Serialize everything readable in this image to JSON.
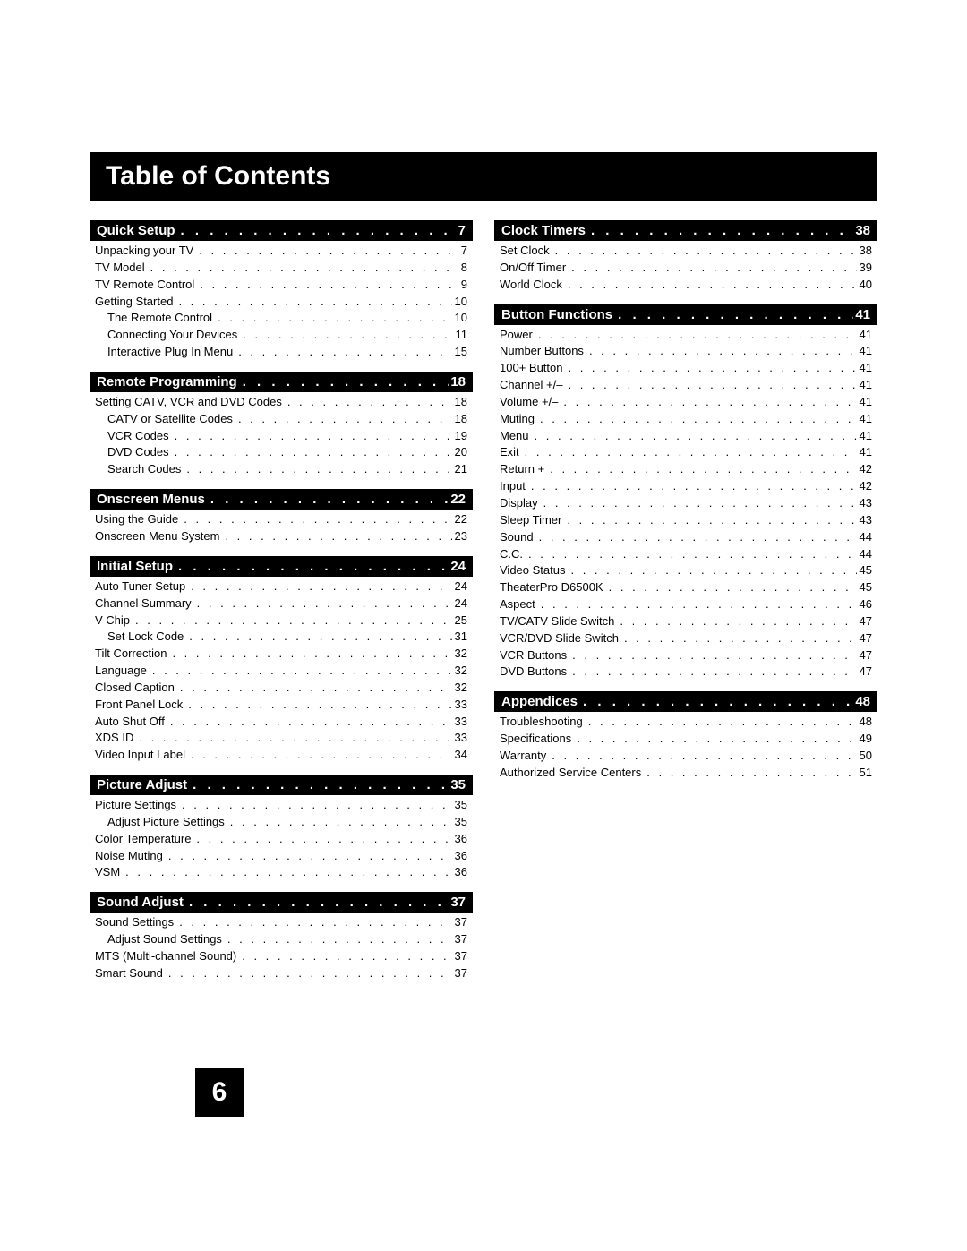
{
  "title": "Table of Contents",
  "page_number": "6",
  "colors": {
    "bg": "#ffffff",
    "header_bg": "#000000",
    "header_fg": "#ffffff",
    "text": "#000000"
  },
  "columns": [
    {
      "sections": [
        {
          "title": "Quick Setup",
          "page": "7",
          "entries": [
            {
              "label": "Unpacking your TV",
              "page": "7",
              "indent": 0
            },
            {
              "label": "TV Model",
              "page": "8",
              "indent": 0
            },
            {
              "label": "TV Remote Control",
              "page": "9",
              "indent": 0
            },
            {
              "label": "Getting Started",
              "page": "10",
              "indent": 0
            },
            {
              "label": "The Remote Control",
              "page": "10",
              "indent": 1
            },
            {
              "label": "Connecting Your Devices",
              "page": "11",
              "indent": 1
            },
            {
              "label": "Interactive Plug In Menu",
              "page": "15",
              "indent": 1
            }
          ]
        },
        {
          "title": "Remote Programming",
          "page": "18",
          "entries": [
            {
              "label": "Setting CATV, VCR and DVD Codes",
              "page": "18",
              "indent": 0
            },
            {
              "label": "CATV or Satellite Codes",
              "page": "18",
              "indent": 1
            },
            {
              "label": "VCR Codes",
              "page": "19",
              "indent": 1
            },
            {
              "label": "DVD Codes",
              "page": "20",
              "indent": 1
            },
            {
              "label": "Search Codes",
              "page": "21",
              "indent": 1
            }
          ]
        },
        {
          "title": "Onscreen Menus",
          "page": "22",
          "entries": [
            {
              "label": "Using the Guide",
              "page": "22",
              "indent": 0
            },
            {
              "label": "Onscreen Menu System",
              "page": "23",
              "indent": 0
            }
          ]
        },
        {
          "title": "Initial Setup",
          "page": "24",
          "entries": [
            {
              "label": "Auto Tuner Setup",
              "page": "24",
              "indent": 0
            },
            {
              "label": "Channel Summary",
              "page": "24",
              "indent": 0
            },
            {
              "label": "V-Chip",
              "page": "25",
              "indent": 0
            },
            {
              "label": "Set Lock Code",
              "page": "31",
              "indent": 1
            },
            {
              "label": "Tilt Correction",
              "page": "32",
              "indent": 0
            },
            {
              "label": "Language",
              "page": "32",
              "indent": 0
            },
            {
              "label": "Closed Caption",
              "page": "32",
              "indent": 0
            },
            {
              "label": "Front Panel Lock",
              "page": "33",
              "indent": 0
            },
            {
              "label": "Auto Shut Off",
              "page": "33",
              "indent": 0
            },
            {
              "label": "XDS ID",
              "page": "33",
              "indent": 0
            },
            {
              "label": "Video Input Label",
              "page": "34",
              "indent": 0
            }
          ]
        },
        {
          "title": "Picture Adjust",
          "page": "35",
          "entries": [
            {
              "label": "Picture Settings",
              "page": "35",
              "indent": 0
            },
            {
              "label": "Adjust Picture Settings",
              "page": "35",
              "indent": 1
            },
            {
              "label": "Color Temperature",
              "page": "36",
              "indent": 0
            },
            {
              "label": "Noise Muting",
              "page": "36",
              "indent": 0
            },
            {
              "label": "VSM",
              "page": "36",
              "indent": 0
            }
          ]
        },
        {
          "title": "Sound Adjust",
          "page": "37",
          "entries": [
            {
              "label": "Sound Settings",
              "page": "37",
              "indent": 0
            },
            {
              "label": "Adjust Sound Settings",
              "page": "37",
              "indent": 1
            },
            {
              "label": "MTS (Multi-channel Sound)",
              "page": "37",
              "indent": 0
            },
            {
              "label": "Smart Sound",
              "page": "37",
              "indent": 0
            }
          ]
        }
      ]
    },
    {
      "sections": [
        {
          "title": "Clock Timers",
          "page": "38",
          "entries": [
            {
              "label": "Set Clock",
              "page": "38",
              "indent": 0
            },
            {
              "label": "On/Off Timer",
              "page": "39",
              "indent": 0
            },
            {
              "label": "World Clock",
              "page": "40",
              "indent": 0
            }
          ]
        },
        {
          "title": "Button Functions",
          "page": "41",
          "entries": [
            {
              "label": "Power",
              "page": "41",
              "indent": 0
            },
            {
              "label": "Number Buttons",
              "page": "41",
              "indent": 0
            },
            {
              "label": "100+ Button",
              "page": "41",
              "indent": 0
            },
            {
              "label": "Channel +/–",
              "page": "41",
              "indent": 0
            },
            {
              "label": "Volume +/–",
              "page": "41",
              "indent": 0
            },
            {
              "label": "Muting",
              "page": "41",
              "indent": 0
            },
            {
              "label": "Menu",
              "page": "41",
              "indent": 0
            },
            {
              "label": "Exit",
              "page": "41",
              "indent": 0
            },
            {
              "label": "Return +",
              "page": "42",
              "indent": 0
            },
            {
              "label": "Input",
              "page": "42",
              "indent": 0
            },
            {
              "label": "Display",
              "page": "43",
              "indent": 0
            },
            {
              "label": "Sleep Timer",
              "page": "43",
              "indent": 0
            },
            {
              "label": "Sound",
              "page": "44",
              "indent": 0
            },
            {
              "label": "C.C.",
              "page": "44",
              "indent": 0
            },
            {
              "label": "Video Status",
              "page": "45",
              "indent": 0
            },
            {
              "label": "TheaterPro D6500K",
              "page": "45",
              "indent": 0
            },
            {
              "label": "Aspect",
              "page": "46",
              "indent": 0
            },
            {
              "label": "TV/CATV Slide Switch",
              "page": "47",
              "indent": 0
            },
            {
              "label": "VCR/DVD Slide Switch",
              "page": "47",
              "indent": 0
            },
            {
              "label": "VCR Buttons",
              "page": "47",
              "indent": 0
            },
            {
              "label": "DVD Buttons",
              "page": "47",
              "indent": 0
            }
          ]
        },
        {
          "title": "Appendices",
          "page": "48",
          "entries": [
            {
              "label": "Troubleshooting",
              "page": "48",
              "indent": 0
            },
            {
              "label": "Specifications",
              "page": "49",
              "indent": 0
            },
            {
              "label": "Warranty",
              "page": "50",
              "indent": 0
            },
            {
              "label": "Authorized Service Centers",
              "page": "51",
              "indent": 0
            }
          ]
        }
      ]
    }
  ]
}
